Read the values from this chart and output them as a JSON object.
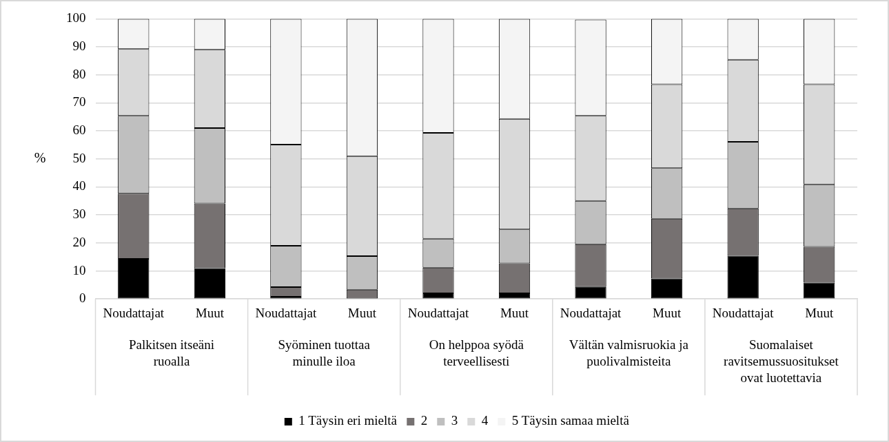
{
  "chart_data": {
    "type": "bar",
    "stacked": true,
    "ylabel": "%",
    "categories": [
      "Noudattajat",
      "Muut",
      "Noudattajat",
      "Muut",
      "Noudattajat",
      "Muut",
      "Noudattajat",
      "Muut",
      "Noudattajat",
      "Muut"
    ],
    "annotations": [
      "Palkitsen itseäni ruoalla",
      "Syöminen tuottaa minulle iloa",
      "On helppoa syödä terveellisesti",
      "Vältän valmisruokia ja puolivalmisteita",
      "Suomalaiset ravitsemussuositukset ovat luotettavia"
    ],
    "series": [
      {
        "name": "1 Täysin eri mieltä",
        "color": "#000000",
        "values": [
          14.3,
          11.0,
          0.8,
          0,
          2.0,
          2.0,
          4.3,
          7.3,
          15.4,
          5.8
        ]
      },
      {
        "name": "2",
        "color": "#767171",
        "values": [
          23.3,
          23.1,
          3.4,
          3.3,
          9.2,
          10.7,
          15.2,
          21.3,
          16.9,
          12.8
        ]
      },
      {
        "name": "3",
        "color": "#bfbfbf",
        "values": [
          27.8,
          26.9,
          14.8,
          12.0,
          10.3,
          12.1,
          15.5,
          18.1,
          23.8,
          22.3
        ]
      },
      {
        "name": "4",
        "color": "#d9d9d9",
        "values": [
          23.8,
          28.0,
          36.1,
          35.7,
          37.8,
          39.5,
          30.4,
          29.9,
          29.3,
          35.7
        ]
      },
      {
        "name": "5 Täysin samaa mieltä",
        "color": "#f4f4f4",
        "values": [
          10.8,
          11.0,
          44.9,
          49.0,
          40.7,
          35.7,
          34.3,
          23.4,
          14.6,
          23.4
        ]
      }
    ],
    "ylim": [
      0,
      100
    ],
    "yticks": [
      0,
      10,
      20,
      30,
      40,
      50,
      60,
      70,
      80,
      90,
      100
    ],
    "grid": "y",
    "legend": "bottom"
  }
}
